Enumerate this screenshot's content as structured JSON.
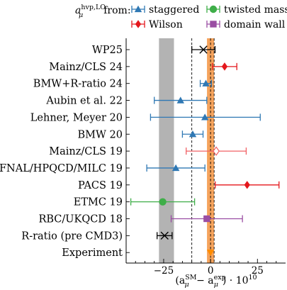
{
  "chart_data": {
    "type": "scatter",
    "orientation": "horizontal-errorbar",
    "legend": {
      "prefix_base": "a",
      "prefix_sup": "hvp,LO",
      "prefix_sub": "μ",
      "prefix_tail": "from:",
      "placement": "top",
      "entries": [
        {
          "name": "staggered",
          "marker": "triangle",
          "color": "#2f78b4"
        },
        {
          "name": "twisted mass",
          "marker": "circle",
          "color": "#3fae49"
        },
        {
          "name": "Wilson",
          "marker": "diamond",
          "color": "#e4171c"
        },
        {
          "name": "domain wall",
          "marker": "square",
          "color": "#9a4ea3"
        }
      ]
    },
    "x_axis": {
      "label_parts": [
        "(a",
        "SM",
        "μ",
        " − a",
        "exp",
        "μ",
        ") · 10",
        "10"
      ],
      "lim": [
        -45,
        40
      ],
      "ticks": [
        -25,
        0,
        25
      ],
      "tick_labels": [
        "−25",
        "0",
        "25"
      ]
    },
    "bands": [
      {
        "name": "grey band",
        "x_min": -27.5,
        "x_max": -19.5,
        "color": "#b3b3b3"
      },
      {
        "name": "experiment band",
        "x_min": -1.9,
        "x_max": 1.9,
        "color": "#f5a35c"
      }
    ],
    "dashed_lines": [
      -10,
      0,
      1.9
    ],
    "categories": [
      "WP25",
      "Mainz/CLS 24",
      "BMW+R-ratio 24",
      "Aubin et al. 22",
      "Lehner, Meyer 20",
      "BMW 20",
      "Mainz/CLS 19",
      "FNAL/HPQCD/MILC 19",
      "PACS 19",
      "ETMC 19",
      "RBC/UKQCD 18",
      "R-ratio (pre CMD3)",
      "Experiment"
    ],
    "points": [
      {
        "label": "WP25",
        "x": -3.8,
        "xerr_low": 6.2,
        "xerr_high": 6.2,
        "marker": "x",
        "color": "#000000"
      },
      {
        "label": "Mainz/CLS 24",
        "x": 7.5,
        "xerr_low": 6.5,
        "xerr_high": 6.5,
        "marker": "diamond",
        "color": "#e4171c"
      },
      {
        "label": "BMW+R-ratio 24",
        "x": -2.5,
        "xerr_low": 3.0,
        "xerr_high": 3.0,
        "marker": "triangle",
        "color": "#2f78b4"
      },
      {
        "label": "Aubin et al. 22",
        "x": -16.0,
        "xerr_low": 14.0,
        "xerr_high": 14.0,
        "marker": "triangle",
        "color": "#2f78b4"
      },
      {
        "label": "Lehner, Meyer 20",
        "x": -3.0,
        "xerr_low": 29.0,
        "xerr_high": 29.5,
        "marker": "triangle",
        "color": "#2f78b4"
      },
      {
        "label": "BMW 20",
        "x": -9.5,
        "xerr_low": 5.5,
        "xerr_high": 5.5,
        "marker": "triangle",
        "color": "#2f78b4"
      },
      {
        "label": "Mainz/CLS 19",
        "x": 3.0,
        "xerr_low": 16.0,
        "xerr_high": 16.0,
        "marker": "diamond-open",
        "color": "#f26065"
      },
      {
        "label": "FNAL/HPQCD/MILC 19",
        "x": -18.5,
        "xerr_low": 15.5,
        "xerr_high": 15.5,
        "marker": "triangle",
        "color": "#2f78b4"
      },
      {
        "label": "PACS 19",
        "x": 19.5,
        "xerr_low": 17.0,
        "xerr_high": 17.0,
        "marker": "diamond",
        "color": "#e4171c"
      },
      {
        "label": "ETMC 19",
        "x": -25.5,
        "xerr_low": 17.0,
        "xerr_high": 17.0,
        "marker": "circle",
        "color": "#3fae49"
      },
      {
        "label": "RBC/UKQCD 18",
        "x": -2.0,
        "xerr_low": 19.0,
        "xerr_high": 19.0,
        "marker": "square",
        "color": "#9a4ea3"
      },
      {
        "label": "R-ratio (pre CMD3)",
        "x": -24.5,
        "xerr_low": 4.0,
        "xerr_high": 4.0,
        "marker": "x",
        "color": "#000000"
      },
      {
        "label": "Experiment",
        "x": 0.0,
        "xerr_low": 0.0,
        "xerr_high": 0.0,
        "marker": "triangle-down",
        "color": "#ff8c00"
      }
    ]
  }
}
